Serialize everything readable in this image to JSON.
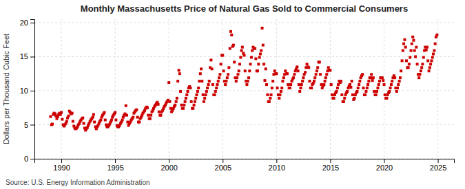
{
  "chart_data": {
    "type": "scatter",
    "title": "Monthly Massachusetts Price of Natural Gas Sold to Commercial Consumers",
    "ylabel": "Dollars per Thousand Cubic Feet",
    "source": "Source: U.S. Energy Information Administration",
    "color": "#cc0000",
    "marker": "square",
    "grid": true,
    "xlim": [
      1987.5,
      2026.5
    ],
    "ylim": [
      0,
      20.5
    ],
    "xticks": [
      1990,
      1995,
      2000,
      2005,
      2010,
      2015,
      2020,
      2025
    ],
    "yticks": [
      0,
      5,
      10,
      15,
      20
    ],
    "x": [
      1989.0,
      1989.08,
      1989.17,
      1989.25,
      1989.33,
      1989.42,
      1989.5,
      1989.58,
      1989.67,
      1989.75,
      1989.83,
      1989.92,
      1990.0,
      1990.08,
      1990.17,
      1990.25,
      1990.33,
      1990.42,
      1990.5,
      1990.58,
      1990.67,
      1990.75,
      1990.83,
      1990.92,
      1991.0,
      1991.08,
      1991.17,
      1991.25,
      1991.33,
      1991.42,
      1991.5,
      1991.58,
      1991.67,
      1991.75,
      1991.83,
      1991.92,
      1992.0,
      1992.08,
      1992.17,
      1992.25,
      1992.33,
      1992.42,
      1992.5,
      1992.58,
      1992.67,
      1992.75,
      1992.83,
      1992.92,
      1993.0,
      1993.08,
      1993.17,
      1993.25,
      1993.33,
      1993.42,
      1993.5,
      1993.58,
      1993.67,
      1993.75,
      1993.83,
      1993.92,
      1994.0,
      1994.08,
      1994.17,
      1994.25,
      1994.33,
      1994.42,
      1994.5,
      1994.58,
      1994.67,
      1994.75,
      1994.83,
      1994.92,
      1995.0,
      1995.08,
      1995.17,
      1995.25,
      1995.33,
      1995.42,
      1995.5,
      1995.58,
      1995.67,
      1995.75,
      1995.83,
      1995.92,
      1996.0,
      1996.08,
      1996.17,
      1996.25,
      1996.33,
      1996.42,
      1996.5,
      1996.58,
      1996.67,
      1996.75,
      1996.83,
      1996.92,
      1997.0,
      1997.08,
      1997.17,
      1997.25,
      1997.33,
      1997.42,
      1997.5,
      1997.58,
      1997.67,
      1997.75,
      1997.83,
      1997.92,
      1998.0,
      1998.08,
      1998.17,
      1998.25,
      1998.33,
      1998.42,
      1998.5,
      1998.58,
      1998.67,
      1998.75,
      1998.83,
      1998.92,
      1999.0,
      1999.08,
      1999.17,
      1999.25,
      1999.33,
      1999.42,
      1999.5,
      1999.58,
      1999.67,
      1999.75,
      1999.83,
      1999.92,
      2000.0,
      2000.08,
      2000.17,
      2000.25,
      2000.33,
      2000.42,
      2000.5,
      2000.58,
      2000.67,
      2000.75,
      2000.83,
      2000.92,
      2001.0,
      2001.08,
      2001.17,
      2001.25,
      2001.33,
      2001.42,
      2001.5,
      2001.58,
      2001.67,
      2001.75,
      2001.83,
      2001.92,
      2002.0,
      2002.08,
      2002.17,
      2002.25,
      2002.33,
      2002.42,
      2002.5,
      2002.58,
      2002.67,
      2002.75,
      2002.83,
      2002.92,
      2003.0,
      2003.08,
      2003.17,
      2003.25,
      2003.33,
      2003.42,
      2003.5,
      2003.58,
      2003.67,
      2003.75,
      2003.83,
      2003.92,
      2004.0,
      2004.08,
      2004.17,
      2004.25,
      2004.33,
      2004.42,
      2004.5,
      2004.58,
      2004.67,
      2004.75,
      2004.83,
      2004.92,
      2005.0,
      2005.08,
      2005.17,
      2005.25,
      2005.33,
      2005.42,
      2005.5,
      2005.58,
      2005.67,
      2005.75,
      2005.83,
      2005.92,
      2006.0,
      2006.08,
      2006.17,
      2006.25,
      2006.33,
      2006.42,
      2006.5,
      2006.58,
      2006.67,
      2006.75,
      2006.83,
      2006.92,
      2007.0,
      2007.08,
      2007.17,
      2007.25,
      2007.33,
      2007.42,
      2007.5,
      2007.58,
      2007.67,
      2007.75,
      2007.83,
      2007.92,
      2008.0,
      2008.08,
      2008.17,
      2008.25,
      2008.33,
      2008.42,
      2008.5,
      2008.58,
      2008.67,
      2008.75,
      2008.83,
      2008.92,
      2009.0,
      2009.08,
      2009.17,
      2009.25,
      2009.33,
      2009.42,
      2009.5,
      2009.58,
      2009.67,
      2009.75,
      2009.83,
      2009.92,
      2010.0,
      2010.08,
      2010.17,
      2010.25,
      2010.33,
      2010.42,
      2010.5,
      2010.58,
      2010.67,
      2010.75,
      2010.83,
      2010.92,
      2011.0,
      2011.08,
      2011.17,
      2011.25,
      2011.33,
      2011.42,
      2011.5,
      2011.58,
      2011.67,
      2011.75,
      2011.83,
      2011.92,
      2012.0,
      2012.08,
      2012.17,
      2012.25,
      2012.33,
      2012.42,
      2012.5,
      2012.58,
      2012.67,
      2012.75,
      2012.83,
      2012.92,
      2013.0,
      2013.08,
      2013.17,
      2013.25,
      2013.33,
      2013.42,
      2013.5,
      2013.58,
      2013.67,
      2013.75,
      2013.83,
      2013.92,
      2014.0,
      2014.08,
      2014.17,
      2014.25,
      2014.33,
      2014.42,
      2014.5,
      2014.58,
      2014.67,
      2014.75,
      2014.83,
      2014.92,
      2015.0,
      2015.08,
      2015.17,
      2015.25,
      2015.33,
      2015.42,
      2015.5,
      2015.58,
      2015.67,
      2015.75,
      2015.83,
      2015.92,
      2016.0,
      2016.08,
      2016.17,
      2016.25,
      2016.33,
      2016.42,
      2016.5,
      2016.58,
      2016.67,
      2016.75,
      2016.83,
      2016.92,
      2017.0,
      2017.08,
      2017.17,
      2017.25,
      2017.33,
      2017.42,
      2017.5,
      2017.58,
      2017.67,
      2017.75,
      2017.83,
      2017.92,
      2018.0,
      2018.08,
      2018.17,
      2018.25,
      2018.33,
      2018.42,
      2018.5,
      2018.58,
      2018.67,
      2018.75,
      2018.83,
      2018.92,
      2019.0,
      2019.08,
      2019.17,
      2019.25,
      2019.33,
      2019.42,
      2019.5,
      2019.58,
      2019.67,
      2019.75,
      2019.83,
      2019.92,
      2020.0,
      2020.08,
      2020.17,
      2020.25,
      2020.33,
      2020.42,
      2020.5,
      2020.58,
      2020.67,
      2020.75,
      2020.83,
      2020.92,
      2021.0,
      2021.08,
      2021.17,
      2021.25,
      2021.33,
      2021.42,
      2021.5,
      2021.58,
      2021.67,
      2021.75,
      2021.83,
      2021.92,
      2022.0,
      2022.08,
      2022.17,
      2022.25,
      2022.33,
      2022.42,
      2022.5,
      2022.58,
      2022.67,
      2022.75,
      2022.83,
      2022.92,
      2023.0,
      2023.08,
      2023.17,
      2023.25,
      2023.33,
      2023.42,
      2023.5,
      2023.58,
      2023.67,
      2023.75,
      2023.83,
      2023.92,
      2024.0,
      2024.08,
      2024.17,
      2024.25,
      2024.33,
      2024.42,
      2024.5,
      2024.58,
      2024.67,
      2024.75,
      2024.83,
      2024.92
    ],
    "values": [
      6.2,
      5.0,
      5.1,
      6.5,
      6.7,
      6.6,
      6.3,
      5.9,
      6.2,
      6.5,
      6.7,
      6.5,
      6.8,
      5.8,
      5.0,
      4.8,
      5.0,
      5.2,
      5.5,
      6.0,
      6.3,
      7.0,
      6.8,
      6.6,
      6.7,
      5.5,
      4.8,
      4.5,
      4.4,
      4.5,
      4.7,
      5.0,
      5.2,
      5.5,
      5.7,
      5.9,
      6.0,
      5.2,
      4.5,
      4.2,
      4.4,
      4.6,
      4.9,
      5.2,
      5.5,
      5.7,
      5.9,
      6.1,
      6.5,
      5.4,
      4.7,
      4.4,
      4.7,
      4.9,
      5.2,
      5.5,
      5.7,
      6.1,
      6.4,
      6.6,
      6.8,
      5.7,
      5.0,
      4.7,
      4.7,
      4.9,
      5.1,
      5.4,
      5.7,
      6.1,
      6.4,
      6.6,
      6.8,
      5.7,
      4.9,
      4.7,
      4.7,
      4.9,
      5.2,
      5.4,
      5.7,
      6.1,
      6.4,
      6.6,
      7.8,
      6.4,
      5.4,
      4.9,
      5.2,
      5.4,
      5.7,
      5.9,
      6.1,
      6.7,
      6.9,
      7.1,
      7.2,
      6.1,
      5.4,
      5.4,
      5.9,
      6.1,
      6.4,
      6.7,
      6.9,
      7.1,
      7.4,
      7.6,
      7.5,
      6.4,
      5.9,
      5.9,
      6.4,
      6.9,
      7.1,
      7.4,
      7.7,
      7.9,
      8.1,
      8.3,
      8.0,
      6.9,
      6.4,
      6.4,
      6.9,
      7.1,
      7.4,
      7.7,
      7.9,
      8.2,
      8.4,
      8.6,
      11.2,
      8.4,
      7.4,
      6.9,
      7.1,
      7.4,
      7.7,
      7.9,
      8.4,
      8.9,
      11.4,
      13.0,
      12.5,
      9.9,
      7.9,
      7.4,
      7.4,
      7.9,
      8.4,
      8.9,
      9.4,
      9.9,
      10.4,
      10.6,
      10.4,
      8.4,
      7.4,
      7.4,
      7.9,
      8.4,
      8.9,
      9.4,
      9.9,
      10.4,
      11.4,
      12.5,
      13.2,
      11.4,
      9.4,
      8.4,
      8.9,
      9.4,
      9.9,
      10.4,
      10.9,
      11.4,
      13.4,
      14.5,
      13.2,
      10.9,
      9.4,
      9.4,
      9.9,
      10.4,
      10.9,
      11.4,
      11.9,
      12.4,
      13.9,
      15.2,
      15.2,
      12.9,
      11.4,
      10.9,
      11.4,
      11.9,
      12.4,
      13.4,
      16.2,
      18.7,
      18.2,
      16.5,
      16.7,
      14.2,
      11.9,
      11.4,
      11.9,
      12.4,
      12.9,
      13.9,
      14.9,
      15.9,
      16.4,
      15.5,
      15.2,
      12.9,
      11.4,
      10.9,
      11.4,
      11.9,
      12.9,
      13.9,
      14.9,
      15.9,
      16.4,
      16.2,
      16.2,
      14.7,
      12.9,
      12.9,
      13.9,
      14.9,
      15.4,
      15.9,
      19.2,
      16.7,
      13.9,
      11.5,
      13.2,
      10.9,
      9.4,
      8.4,
      8.4,
      8.9,
      9.4,
      10.4,
      11.4,
      12.4,
      12.9,
      12.5,
      12.5,
      10.4,
      9.4,
      8.9,
      9.4,
      9.9,
      10.4,
      11.4,
      11.9,
      12.4,
      12.9,
      12.5,
      12.5,
      10.9,
      10.4,
      10.4,
      10.9,
      11.4,
      11.7,
      11.9,
      12.4,
      12.9,
      13.2,
      13.5,
      12.9,
      10.9,
      9.9,
      10.4,
      10.9,
      11.4,
      11.9,
      12.4,
      12.7,
      13.4,
      13.9,
      13.5,
      13.4,
      11.4,
      10.4,
      10.4,
      10.9,
      11.1,
      11.4,
      11.9,
      12.4,
      12.9,
      13.4,
      14.2,
      14.2,
      12.4,
      10.9,
      10.4,
      10.7,
      10.9,
      11.4,
      11.9,
      12.4,
      12.9,
      13.4,
      13.0,
      13.0,
      10.9,
      9.4,
      8.9,
      8.9,
      9.4,
      9.7,
      9.9,
      10.4,
      10.9,
      11.4,
      11.2,
      11.4,
      9.4,
      8.4,
      8.4,
      8.9,
      9.4,
      9.7,
      9.9,
      10.4,
      10.7,
      10.9,
      10.5,
      11.4,
      9.4,
      8.7,
      8.9,
      9.4,
      9.7,
      9.9,
      10.4,
      10.9,
      11.4,
      11.9,
      12.2,
      12.4,
      10.4,
      9.4,
      9.4,
      9.9,
      10.4,
      10.9,
      11.4,
      11.9,
      11.9,
      12.4,
      11.5,
      11.9,
      9.9,
      9.4,
      9.4,
      9.9,
      10.4,
      10.9,
      11.4,
      11.9,
      11.9,
      11.9,
      11.5,
      10.9,
      9.4,
      8.9,
      8.9,
      9.4,
      9.7,
      9.9,
      10.4,
      10.9,
      11.4,
      11.9,
      12.2,
      11.9,
      10.4,
      9.9,
      10.4,
      10.9,
      11.4,
      11.9,
      12.9,
      14.4,
      15.9,
      16.9,
      17.5,
      16.4,
      14.4,
      13.4,
      13.4,
      13.9,
      14.9,
      15.9,
      16.9,
      17.9,
      17.4,
      15.9,
      15.0,
      16.4,
      13.9,
      12.4,
      11.9,
      12.4,
      12.9,
      13.4,
      13.9,
      14.9,
      15.9,
      16.4,
      16.0,
      16.4,
      14.4,
      12.9,
      13.4,
      13.9,
      14.4,
      14.9,
      15.4,
      15.9,
      16.9,
      17.9,
      18.2
    ]
  }
}
